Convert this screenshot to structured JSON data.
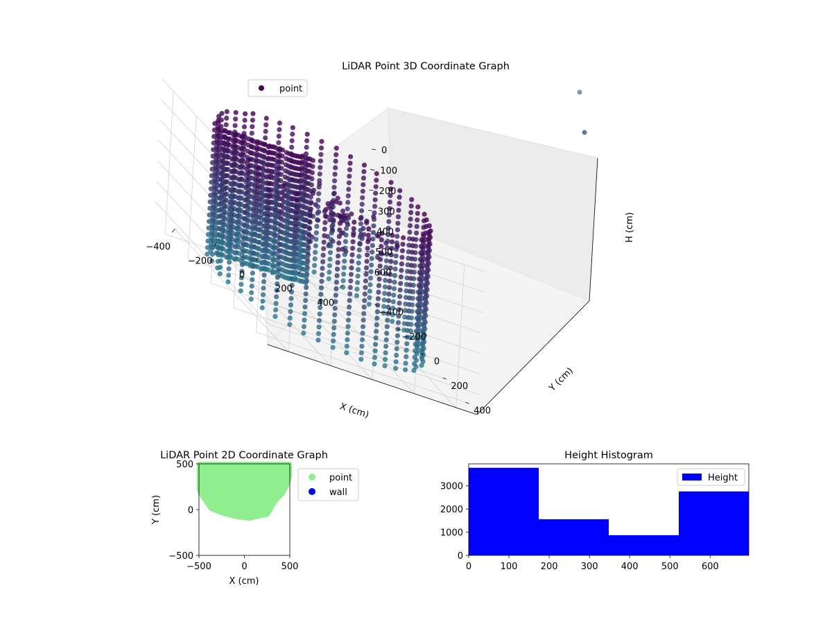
{
  "chart_data": [
    {
      "type": "scatter3d",
      "title": "LiDAR Point 3D Coordinate Graph",
      "xlabel": "X (cm)",
      "ylabel": "Y (cm)",
      "zlabel": "H (cm)",
      "xticks": [
        -400,
        -200,
        0,
        200,
        400
      ],
      "yticks": [
        400,
        200,
        0,
        -200,
        -400
      ],
      "zticks": [
        0,
        100,
        200,
        300,
        400,
        500,
        600
      ],
      "xlim": [
        -500,
        500
      ],
      "ylim": [
        -500,
        500
      ],
      "zlim": [
        700,
        0
      ],
      "zaxis_inverted": true,
      "legend": {
        "entries": [
          "point"
        ],
        "loc": "upper left"
      },
      "colormap": "viridis",
      "series": [
        {
          "name": "point",
          "description_shape": "cylindrical wall of points around sensor, radius ~450 cm, heights 0-650 cm, with interior objects",
          "color_low_height": "#440154",
          "color_high_height": "#2a788e"
        }
      ],
      "grid": true
    },
    {
      "type": "scatter",
      "title": "LiDAR Point 2D Coordinate Graph",
      "xlabel": "X (cm)",
      "ylabel": "Y (cm)",
      "xticks": [
        -500,
        0,
        500
      ],
      "yticks": [
        500,
        0,
        -500
      ],
      "xlim": [
        -500,
        500
      ],
      "ylim": [
        -500,
        500
      ],
      "legend": {
        "entries": [
          "point",
          "wall"
        ],
        "loc": "outside right"
      },
      "series": [
        {
          "name": "point",
          "color": "#90ee90"
        },
        {
          "name": "wall",
          "color": "#0000ff"
        }
      ],
      "grid": false
    },
    {
      "type": "bar",
      "title": "Height Histogram",
      "xticks": [
        0,
        100,
        200,
        300,
        400,
        500,
        600
      ],
      "yticks": [
        0,
        1000,
        2000,
        3000
      ],
      "xlim": [
        0,
        696
      ],
      "ylim": [
        0,
        3950
      ],
      "bins": [
        {
          "x0": 0,
          "x1": 174,
          "count": 3780
        },
        {
          "x0": 174,
          "x1": 348,
          "count": 1560
        },
        {
          "x0": 348,
          "x1": 522,
          "count": 870
        },
        {
          "x0": 522,
          "x1": 696,
          "count": 2760
        }
      ],
      "color": "#0000ff",
      "legend": {
        "entries": [
          "Height"
        ],
        "loc": "upper right"
      },
      "grid": false
    }
  ]
}
